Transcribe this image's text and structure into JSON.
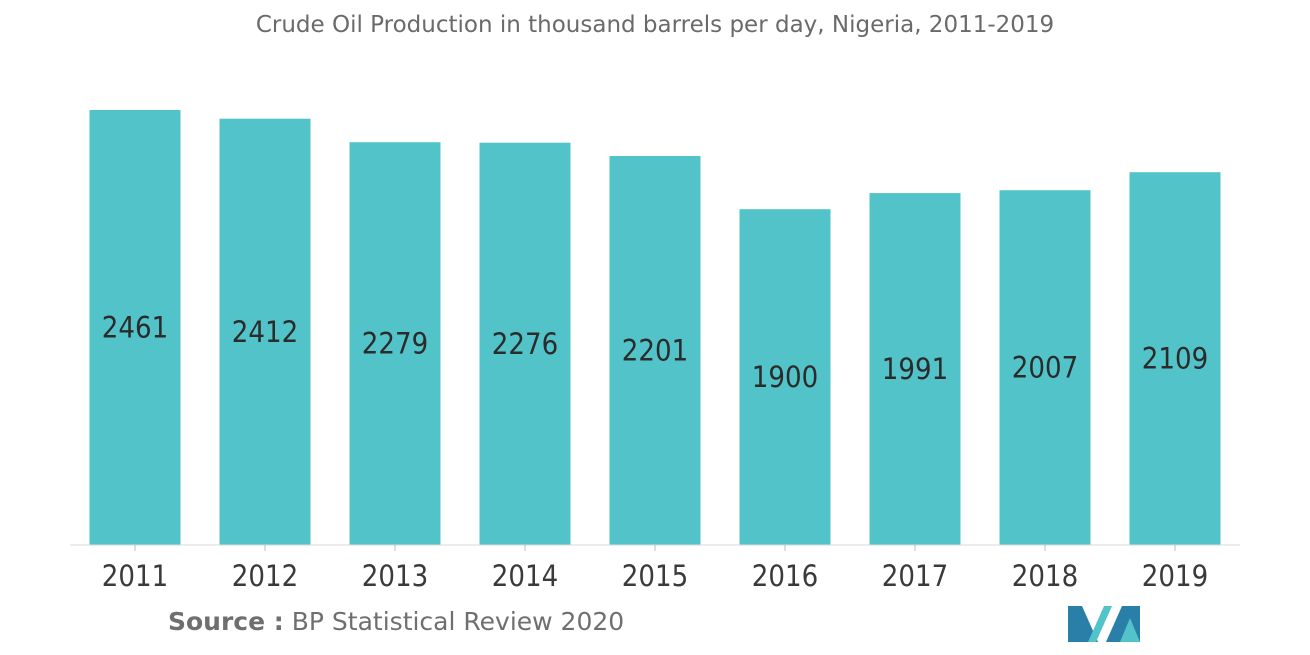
{
  "source": {
    "prefix": "Source :",
    "text": "BP Statistical Review 2020"
  },
  "colors": {
    "bar": "#52c4c9",
    "logo_dark": "#2a7fa8",
    "logo_light": "#52c4c9"
  },
  "logo_icon": "mordor-intelligence-logo-icon",
  "chart_data": {
    "type": "bar",
    "title": "Crude Oil Production in thousand barrels per day, Nigeria, 2011-2019",
    "xlabel": "",
    "ylabel": "",
    "categories": [
      "2011",
      "2012",
      "2013",
      "2014",
      "2015",
      "2016",
      "2017",
      "2018",
      "2019"
    ],
    "values": [
      2461,
      2412,
      2279,
      2276,
      2201,
      1900,
      1991,
      2007,
      2109
    ],
    "ylim": [
      0,
      2461
    ],
    "grid": false,
    "legend": "none"
  }
}
